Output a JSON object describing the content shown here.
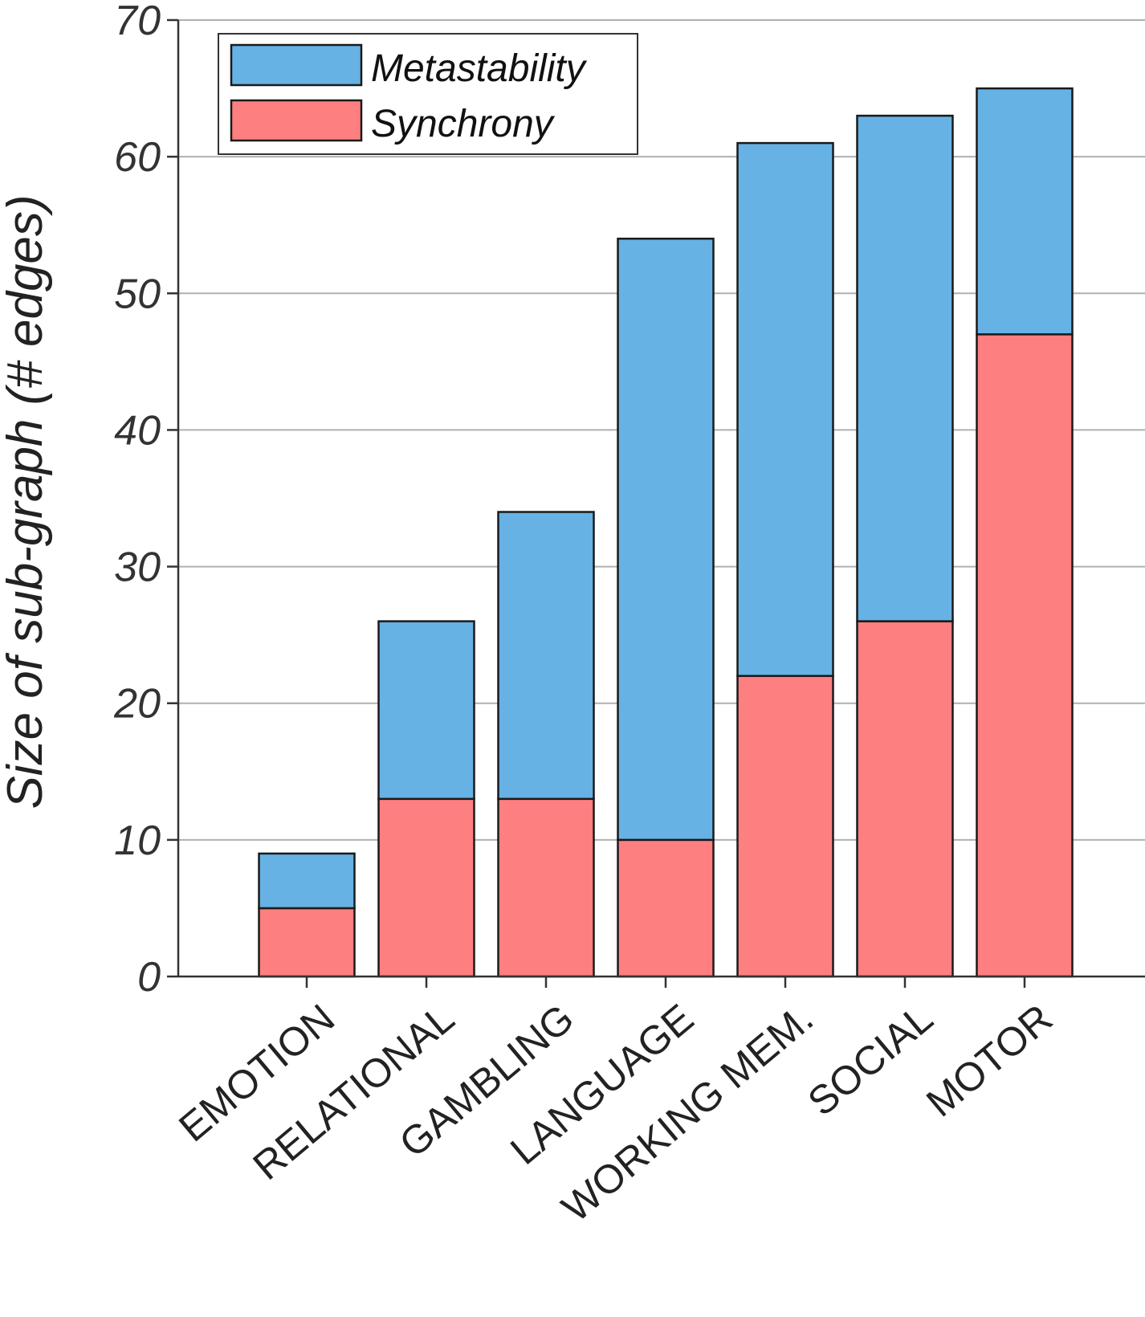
{
  "chart_data": {
    "type": "bar",
    "stacked": true,
    "categories": [
      "EMOTION",
      "RELATIONAL",
      "GAMBLING",
      "LANGUAGE",
      "WORKING MEM.",
      "SOCIAL",
      "MOTOR"
    ],
    "series": [
      {
        "name": "Synchrony",
        "values": [
          5,
          13,
          13,
          10,
          22,
          26,
          47
        ],
        "color": "#fe7f80"
      },
      {
        "name": "Metastability",
        "values": [
          4,
          13,
          21,
          44,
          39,
          37,
          18
        ],
        "color": "#66b2e4"
      }
    ],
    "legend_order": [
      "Metastability",
      "Synchrony"
    ],
    "ylabel": "Size of sub-graph (# edges)",
    "ylim": [
      0,
      70
    ],
    "yticks": [
      0,
      10,
      20,
      30,
      40,
      50,
      60,
      70
    ],
    "grid": "horizontal",
    "legend_position": "top-left"
  }
}
